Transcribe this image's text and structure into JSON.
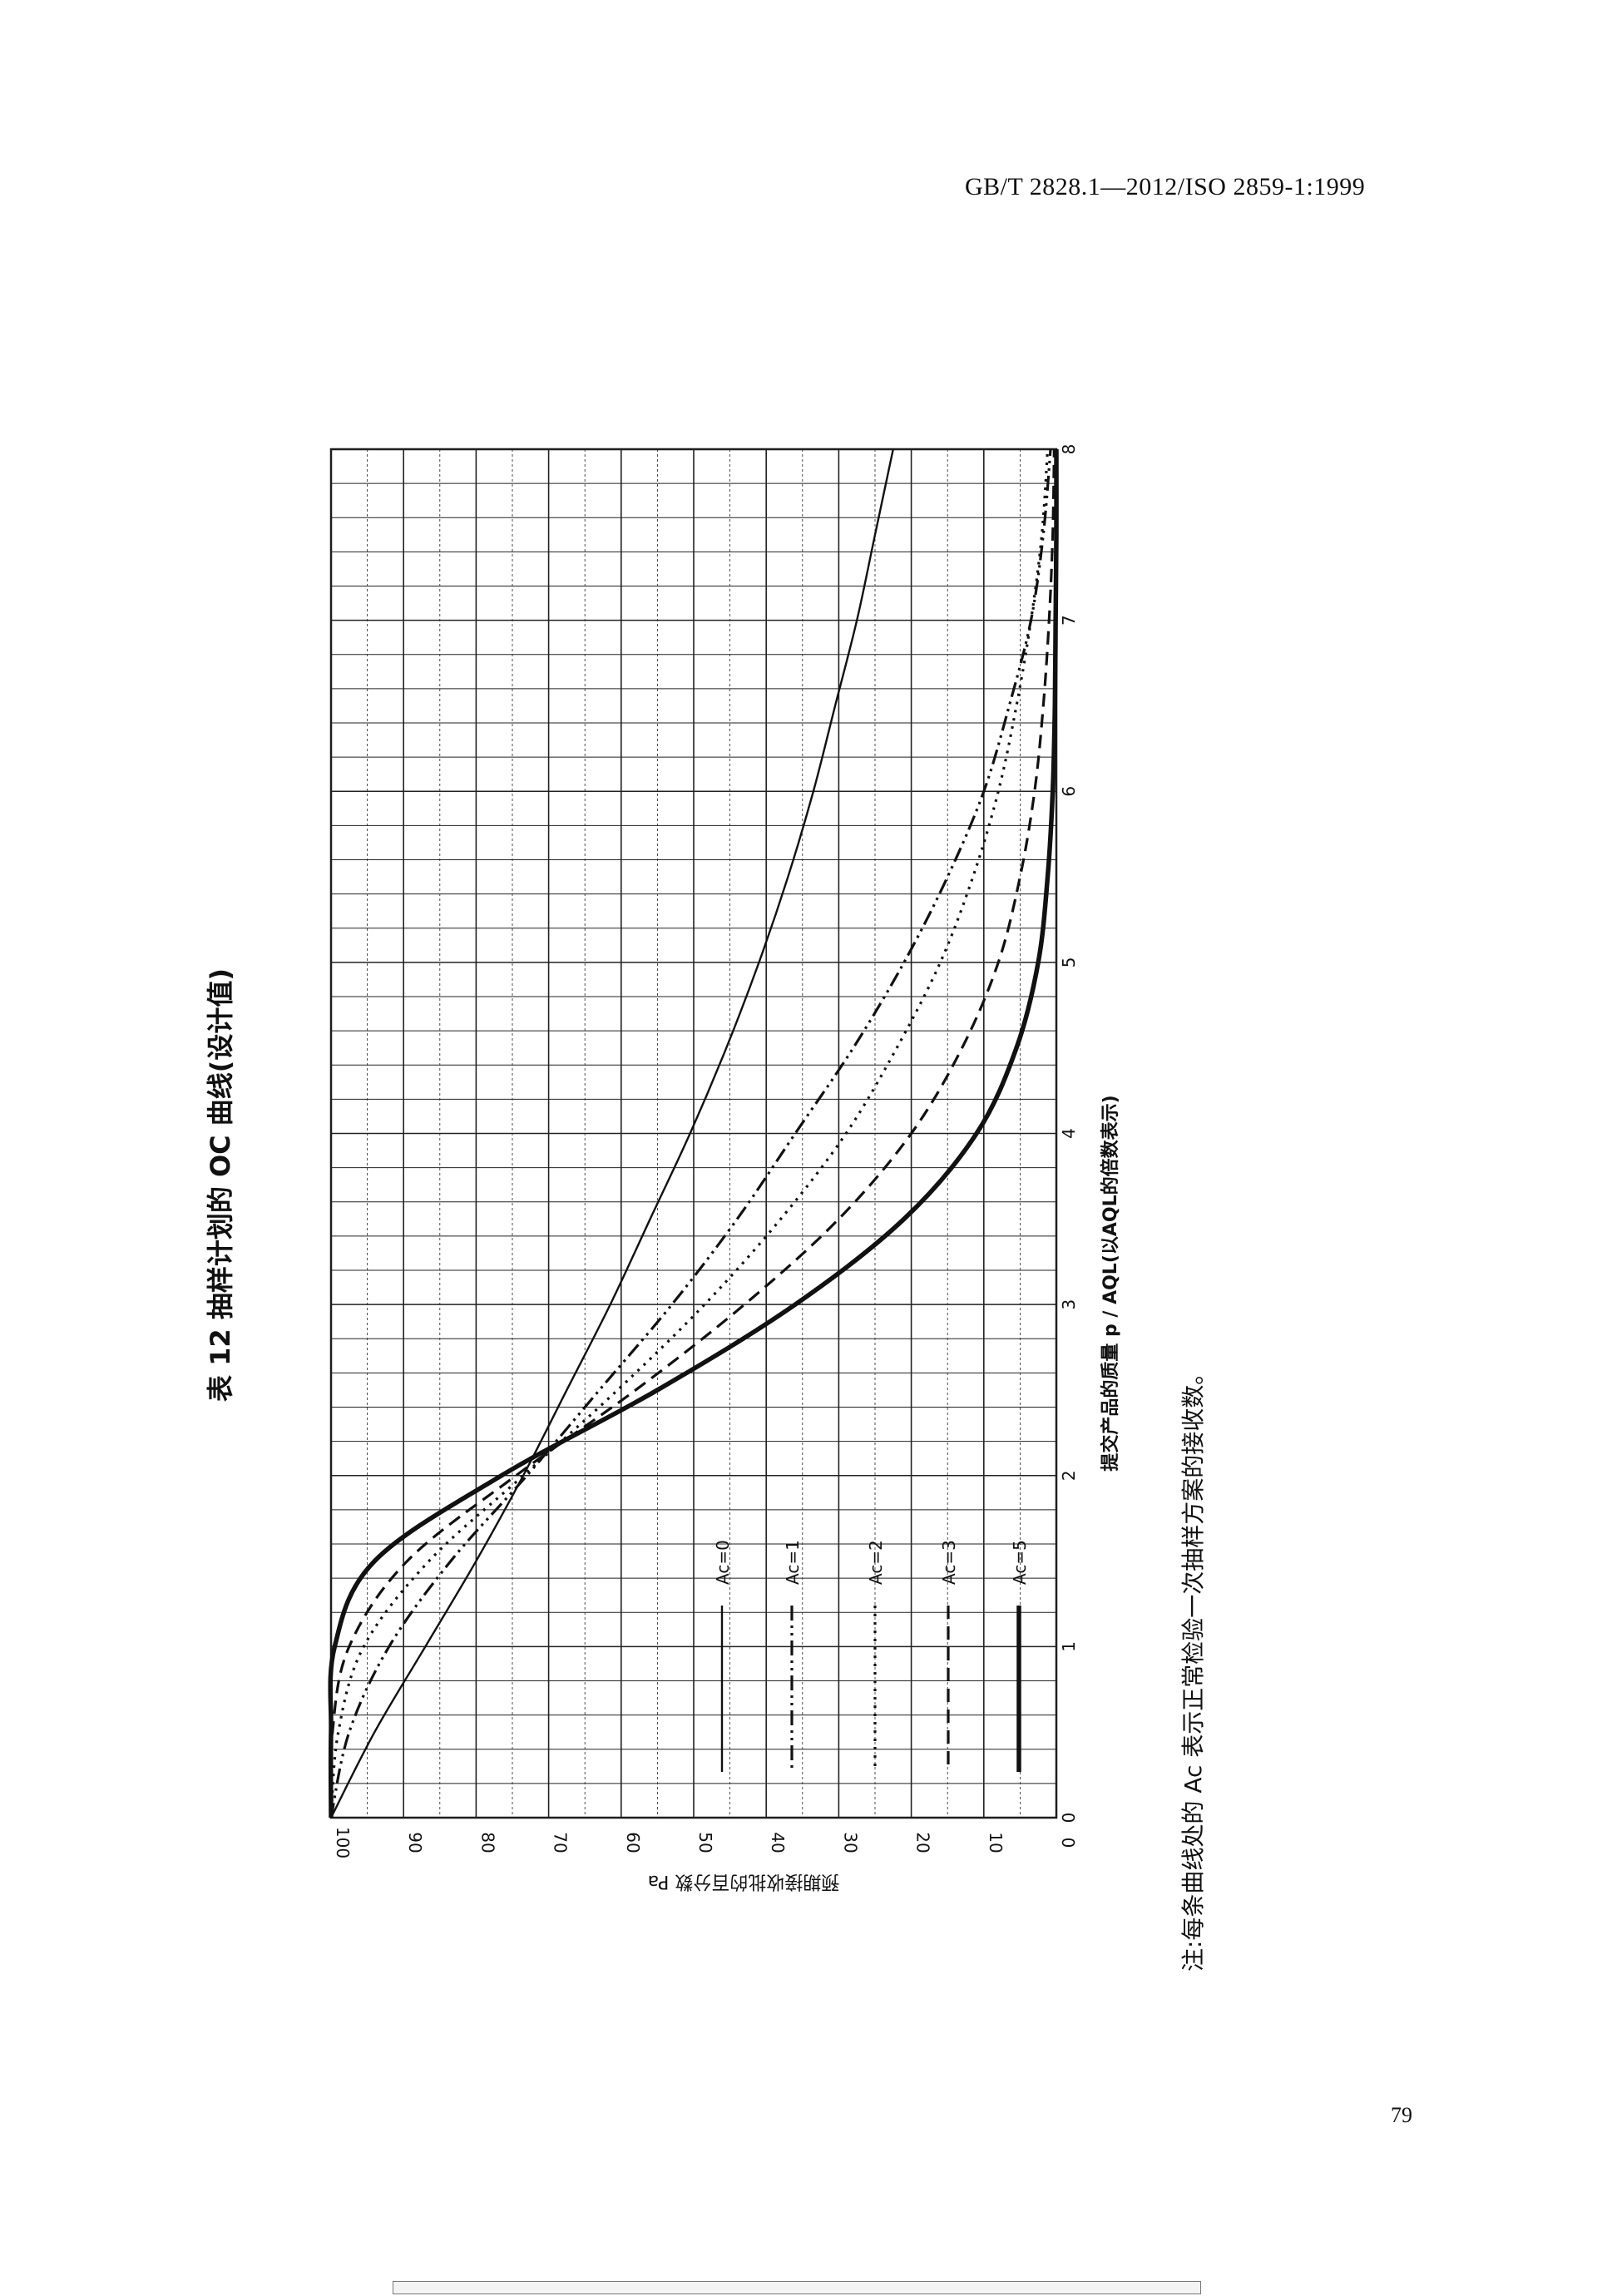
{
  "header": {
    "standard": "GB/T 2828.1—2012/ISO 2859-1:1999"
  },
  "table_title": "表 12 抽样计划的 OC 曲线(设计值)",
  "note": "注:每条曲线处的 Ac 表示正常检验一次抽样方案的接收数。",
  "page_number": "79",
  "chart_data": {
    "type": "line",
    "title": "",
    "xlabel": "提交产品的质量 p / AQL(以AQL的倍数表示)",
    "ylabel": "预期接收批的百分数 Pa",
    "xlim": [
      0,
      8
    ],
    "ylim": [
      0,
      100
    ],
    "x_ticks": [
      "0",
      "1",
      "2",
      "3",
      "4",
      "5",
      "6",
      "7",
      "8"
    ],
    "y_ticks": [
      "100",
      "90",
      "80",
      "70",
      "60",
      "50",
      "40",
      "30",
      "20",
      "10",
      "0"
    ],
    "grid": true,
    "legend_position": "inside lower-left",
    "series": [
      {
        "name": "Ac=0",
        "style": "solid-thin",
        "x": [
          0,
          0.5,
          1,
          1.5,
          2,
          2.5,
          3,
          3.5,
          4,
          4.5,
          5,
          5.5,
          6,
          6.5,
          7,
          7.5,
          8
        ],
        "y": [
          100,
          94,
          87,
          80,
          73.5,
          67.5,
          61.5,
          56,
          50.5,
          45.5,
          41,
          37,
          33.5,
          30.5,
          27.5,
          25,
          22.5
        ]
      },
      {
        "name": "Ac=1",
        "style": "dash-dot-dot",
        "x": [
          0,
          0.5,
          1,
          1.5,
          2,
          2.5,
          3,
          3.5,
          4,
          4.5,
          5,
          5.5,
          6,
          6.5,
          7,
          7.5,
          8
        ],
        "y": [
          100,
          97.5,
          92,
          83.5,
          73,
          63,
          53,
          44,
          36,
          28,
          21,
          15,
          10,
          6.5,
          3.5,
          1.8,
          0.8
        ]
      },
      {
        "name": "Ac=2",
        "style": "dotted",
        "x": [
          0,
          0.5,
          1,
          1.5,
          2,
          2.5,
          3,
          3.5,
          4,
          4.5,
          5,
          5.5,
          6,
          6.5,
          7,
          7.5,
          8
        ],
        "y": [
          100,
          99,
          95.5,
          86.5,
          73.5,
          60.5,
          48.5,
          38,
          29,
          22,
          16,
          11.5,
          8,
          5.5,
          3.5,
          2,
          1.2
        ]
      },
      {
        "name": "Ac=3",
        "style": "dashed",
        "x": [
          0,
          0.5,
          1,
          1.5,
          2,
          2.5,
          3,
          3.5,
          4,
          4.5,
          5,
          5.5,
          6,
          6.5,
          7,
          7.5,
          8
        ],
        "y": [
          100,
          99.8,
          97.5,
          89.5,
          74.5,
          58,
          43,
          30,
          20,
          13,
          8,
          5,
          3,
          1.8,
          1,
          0.5,
          0.3
        ]
      },
      {
        "name": "Ac=5",
        "style": "solid-thick",
        "x": [
          0,
          0.5,
          1,
          1.5,
          2,
          2.5,
          3,
          3.5,
          4,
          4.5,
          5,
          5.5,
          6,
          6.5,
          7,
          7.5,
          8
        ],
        "y": [
          100,
          100,
          99.5,
          94,
          76.5,
          55,
          36,
          21,
          11,
          5.5,
          2.5,
          1.2,
          0.5,
          0.2,
          0.1,
          0,
          0
        ]
      }
    ]
  }
}
